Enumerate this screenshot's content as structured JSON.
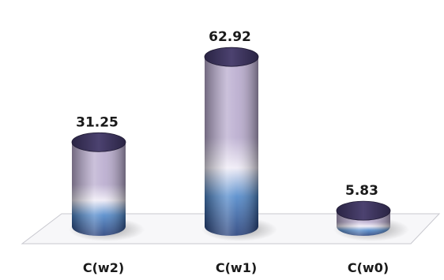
{
  "chart_data": {
    "type": "bar",
    "style": "3d-cylinder",
    "categories": [
      "C(w2)",
      "C(w1)",
      "C(w0)"
    ],
    "values": [
      31.25,
      62.92,
      5.83
    ],
    "data_labels": [
      "31.25",
      "62.92",
      "5.83"
    ],
    "ylim": [
      0,
      70
    ],
    "grid": false,
    "legend": "none",
    "title": "",
    "xlabel": "",
    "ylabel": "",
    "colors": {
      "top_cap": "#3b3458",
      "body_light": "#eeeaf5",
      "body_lavender": "#b7a9cd",
      "body_blue": "#4d86c9",
      "body_dark": "#223c78",
      "floor": "#f7f7f9",
      "floor_edge": "#c8c8cf"
    }
  }
}
